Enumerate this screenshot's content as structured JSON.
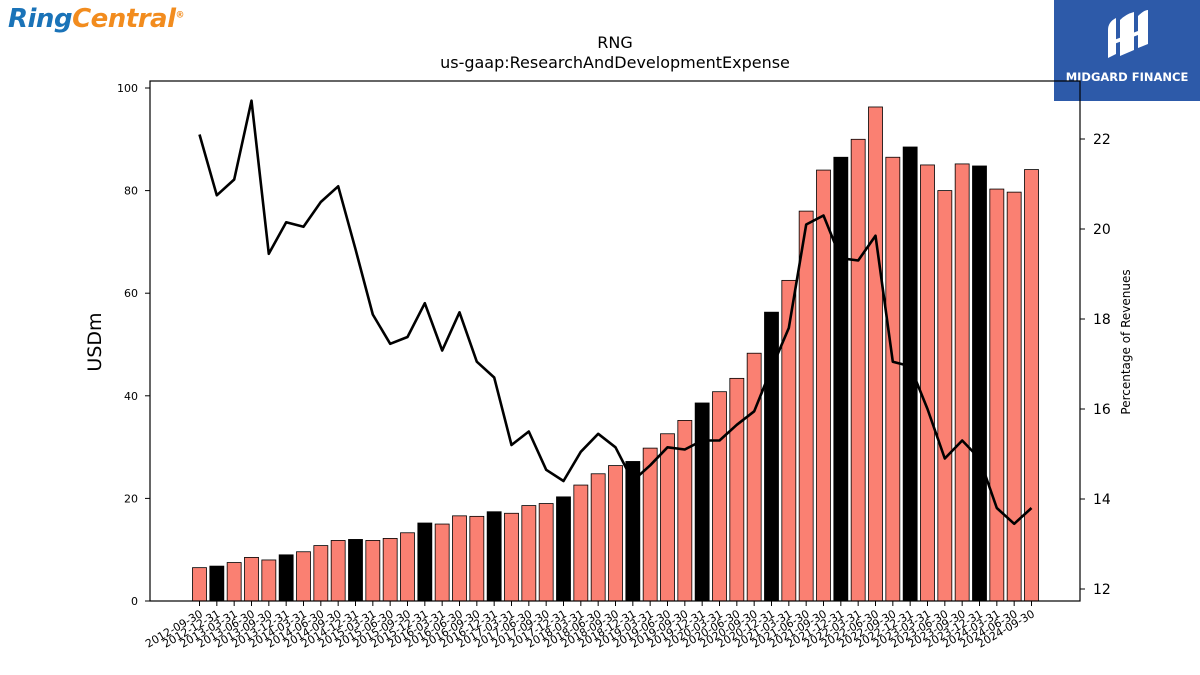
{
  "logos": {
    "left_part1": "Ring",
    "left_part2": "Central",
    "left_mark": "®",
    "right_text": "MIDGARD FINANCE"
  },
  "chart_data": {
    "type": "bar",
    "title": "RNG",
    "subtitle": "us-gaap:ResearchAndDevelopmentExpense",
    "ylabel": "USDm",
    "y2label": "Percentage of Revenues",
    "ylim": [
      0,
      100
    ],
    "y2lim": [
      11.8,
      23.2
    ],
    "yticks": [
      0,
      20,
      40,
      60,
      80,
      100
    ],
    "y2ticks": [
      12,
      14,
      16,
      18,
      20,
      22
    ],
    "grid": false,
    "categories": [
      "2012-09-30",
      "2012-12-31",
      "2013-03-31",
      "2013-06-30",
      "2013-09-30",
      "2013-12-31",
      "2014-03-31",
      "2014-06-30",
      "2014-09-30",
      "2014-12-31",
      "2015-03-31",
      "2015-06-30",
      "2015-09-30",
      "2015-12-31",
      "2016-03-31",
      "2016-06-30",
      "2016-09-30",
      "2016-12-31",
      "2017-03-31",
      "2017-06-30",
      "2017-09-30",
      "2017-12-31",
      "2018-03-31",
      "2018-06-30",
      "2018-09-30",
      "2018-12-31",
      "2019-03-31",
      "2019-06-30",
      "2019-09-30",
      "2019-12-31",
      "2020-03-31",
      "2020-06-30",
      "2020-09-30",
      "2020-12-31",
      "2021-03-31",
      "2021-06-30",
      "2021-09-30",
      "2021-12-31",
      "2022-03-31",
      "2022-06-30",
      "2022-09-30",
      "2022-12-31",
      "2023-03-31",
      "2023-06-30",
      "2023-09-30",
      "2023-12-31",
      "2024-03-31",
      "2024-06-30",
      "2024-09-30"
    ],
    "series": [
      {
        "type": "bar",
        "values": [
          6.5,
          6.8,
          7.5,
          8.5,
          8.0,
          9.0,
          9.6,
          10.8,
          11.8,
          12.0,
          11.8,
          12.2,
          13.3,
          15.2,
          15.0,
          16.6,
          16.5,
          17.4,
          17.1,
          18.6,
          19.0,
          20.3,
          22.6,
          24.8,
          26.4,
          27.2,
          29.8,
          32.6,
          35.2,
          38.6,
          40.8,
          43.4,
          48.3,
          56.3,
          62.5,
          76.0,
          84.0,
          86.5,
          90.0,
          96.3,
          86.5,
          88.5,
          85.0,
          80.0,
          85.2,
          84.8,
          80.3,
          79.7,
          84.1
        ],
        "color": "#fa8072",
        "highlight_color": "#000000",
        "highlight_categories": [
          "2012-12-31",
          "2013-12-31",
          "2014-12-31",
          "2015-12-31",
          "2016-12-31",
          "2017-12-31",
          "2018-12-31",
          "2019-12-31",
          "2020-12-31",
          "2021-12-31",
          "2022-12-31",
          "2023-12-31"
        ]
      },
      {
        "type": "line",
        "axis": "right",
        "values": [
          22.1,
          20.75,
          21.1,
          22.85,
          19.45,
          20.15,
          20.05,
          20.6,
          20.95,
          19.55,
          18.1,
          17.45,
          17.6,
          18.35,
          17.3,
          18.15,
          17.05,
          16.7,
          15.2,
          15.5,
          14.65,
          14.4,
          15.05,
          15.45,
          15.15,
          14.4,
          14.75,
          15.15,
          15.1,
          15.3,
          15.3,
          15.65,
          15.95,
          16.9,
          17.8,
          20.1,
          20.3,
          19.35,
          19.3,
          19.85,
          17.05,
          16.95,
          16.0,
          14.9,
          15.3,
          14.9,
          13.8,
          13.45,
          13.8
        ],
        "color": "#000000"
      }
    ]
  }
}
